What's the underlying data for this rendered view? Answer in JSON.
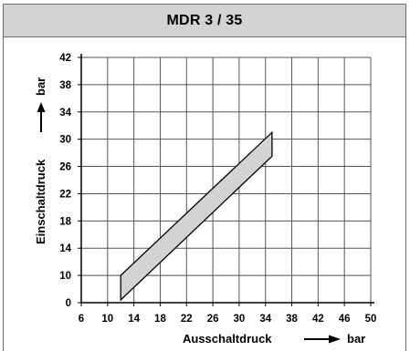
{
  "chart_data": {
    "type": "area",
    "title": "MDR 3 / 35",
    "xlabel": "Ausschaltdruck",
    "ylabel": "Einschaltdruck",
    "xunit": "bar",
    "yunit": "bar",
    "xlim": [
      6,
      50
    ],
    "ylim": [
      0,
      42
    ],
    "xticks": [
      6,
      10,
      14,
      18,
      22,
      26,
      30,
      34,
      38,
      42,
      46,
      50
    ],
    "yticks": [
      0,
      10,
      14,
      18,
      22,
      26,
      30,
      34,
      38,
      42
    ],
    "grid": true,
    "region": {
      "fill": "#d3d3d3",
      "stroke": "#000000",
      "points": [
        [
          12,
          10
        ],
        [
          35,
          31
        ],
        [
          35,
          27.5
        ],
        [
          12,
          1
        ]
      ]
    }
  }
}
